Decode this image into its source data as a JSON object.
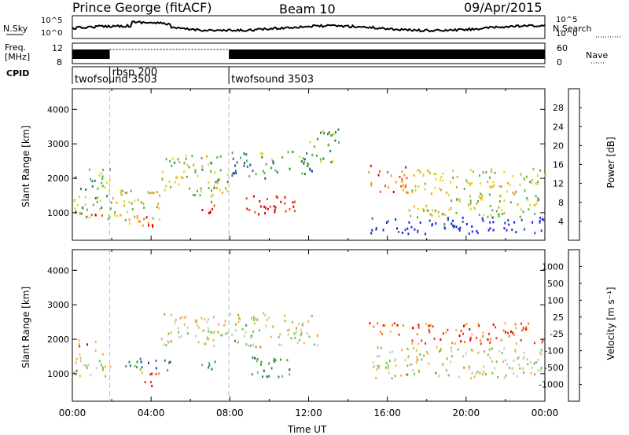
{
  "header": {
    "station": "Prince George (fitACF)",
    "beam": "Beam 10",
    "date": "09/Apr/2015"
  },
  "top_panels": {
    "nsky_label": "N.Sky",
    "nsearch_label": "N.Search",
    "noise_ticks_left": [
      "10^5",
      "10^0"
    ],
    "noise_ticks_right": [
      "10^5",
      "10^0"
    ],
    "freq_label": "Freq.",
    "freq_unit": "[MHz]",
    "freq_ticks": [
      "12",
      "8"
    ],
    "nave_label": "Nave",
    "nave_ticks": [
      "60",
      "0"
    ],
    "cpid_label": "CPID",
    "cpid_segments": [
      {
        "name": "twofsound 3503",
        "start_hour": 0,
        "end_hour": 1.9
      },
      {
        "name": "rbsp 200",
        "start_hour": 1.9,
        "end_hour": 7.95
      },
      {
        "name": "twofsound 3503",
        "start_hour": 7.95,
        "end_hour": 24
      }
    ]
  },
  "chart_data": [
    {
      "type": "heatmap",
      "panel": "power",
      "ylabel": "Slant Range [km]",
      "yticks": [
        "1000",
        "2000",
        "3000",
        "4000"
      ],
      "ylim": [
        200,
        4600
      ],
      "xlim": [
        0,
        24
      ],
      "colorbar_label": "Power [dB]",
      "colorbar_ticks": [
        "4",
        "8",
        "12",
        "16",
        "20",
        "24",
        "28"
      ],
      "colorbar_colors": [
        "#1a1aff",
        "#1f4ea8",
        "#2e7d5b",
        "#56b34a",
        "#d9d923",
        "#f29b1a",
        "#e8501e",
        "#e00000"
      ],
      "regions": [
        {
          "t0": 0.0,
          "t1": 2.0,
          "r0": 800,
          "r1": 2300,
          "level": 0.45
        },
        {
          "t0": 0.0,
          "t1": 1.8,
          "r0": 950,
          "r1": 1100,
          "level": 0.9
        },
        {
          "t0": 2.0,
          "t1": 4.5,
          "r0": 600,
          "r1": 1700,
          "level": 0.55
        },
        {
          "t0": 3.7,
          "t1": 4.2,
          "r0": 500,
          "r1": 1000,
          "level": 1.0
        },
        {
          "t0": 4.5,
          "t1": 8.0,
          "r0": 1500,
          "r1": 2700,
          "level": 0.5
        },
        {
          "t0": 6.5,
          "t1": 7.6,
          "r0": 1000,
          "r1": 1400,
          "level": 0.95
        },
        {
          "t0": 8.8,
          "t1": 11.3,
          "r0": 900,
          "r1": 1600,
          "level": 0.95
        },
        {
          "t0": 8.0,
          "t1": 12.2,
          "r0": 2000,
          "r1": 2800,
          "level": 0.35
        },
        {
          "t0": 12.0,
          "t1": 13.5,
          "r0": 2500,
          "r1": 3500,
          "level": 0.4
        },
        {
          "t0": 15.0,
          "t1": 17.0,
          "r0": 1600,
          "r1": 2400,
          "level": 0.8
        },
        {
          "t0": 17.0,
          "t1": 24.0,
          "r0": 900,
          "r1": 2300,
          "level": 0.55
        },
        {
          "t0": 15.0,
          "t1": 24.0,
          "r0": 400,
          "r1": 900,
          "level": 0.1
        }
      ]
    },
    {
      "type": "heatmap",
      "panel": "velocity",
      "ylabel": "Slant Range [km]",
      "yticks": [
        "1000",
        "2000",
        "3000",
        "4000"
      ],
      "ylim": [
        200,
        4600
      ],
      "xlim": [
        0,
        24
      ],
      "colorbar_label": "Velocity [m s⁻¹]",
      "colorbar_ticks": [
        "1000",
        "500",
        "100",
        "25",
        "-25",
        "-100",
        "-500",
        "-1000"
      ],
      "colorbar_colors": [
        "#1f3fa8",
        "#2e7d7d",
        "#3f9a4a",
        "#6fc64a",
        "#c8c8c8",
        "#f5b24a",
        "#f08020",
        "#e83a1a",
        "#e00000"
      ],
      "regions": [
        {
          "t0": 0.0,
          "t1": 2.0,
          "r0": 900,
          "r1": 1600,
          "level": 0.5
        },
        {
          "t0": 0.2,
          "t1": 1.3,
          "r0": 1700,
          "r1": 2000,
          "level": 0.72
        },
        {
          "t0": 3.5,
          "t1": 4.5,
          "r0": 600,
          "r1": 1100,
          "level": 0.8
        },
        {
          "t0": 2.5,
          "t1": 5.0,
          "r0": 1100,
          "r1": 1500,
          "level": 0.25
        },
        {
          "t0": 4.5,
          "t1": 12.5,
          "r0": 1800,
          "r1": 2800,
          "level": 0.5
        },
        {
          "t0": 6.5,
          "t1": 7.5,
          "r0": 1000,
          "r1": 1400,
          "level": 0.3
        },
        {
          "t0": 8.8,
          "t1": 11.3,
          "r0": 900,
          "r1": 1500,
          "level": 0.25
        },
        {
          "t0": 15.0,
          "t1": 24.0,
          "r0": 1900,
          "r1": 2500,
          "level": 0.78
        },
        {
          "t0": 15.0,
          "t1": 24.0,
          "r0": 900,
          "r1": 1800,
          "level": 0.5
        }
      ]
    }
  ],
  "time_axis": {
    "ticks": [
      "00:00",
      "04:00",
      "08:00",
      "12:00",
      "16:00",
      "20:00",
      "00:00"
    ],
    "label": "Time UT"
  }
}
